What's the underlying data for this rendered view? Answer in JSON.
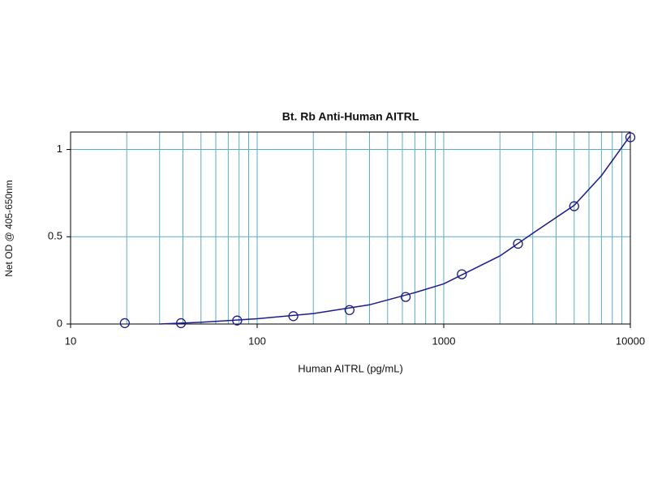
{
  "chart_data": {
    "type": "scatter",
    "title": "Bt. Rb Anti-Human AITRL",
    "x_label": "Human AITRL (pg/mL)",
    "y_label": "Net OD @ 405-650nm",
    "x": [
      19.53,
      39.06,
      78.13,
      156.25,
      312.5,
      625,
      1250,
      2500,
      5000,
      10000
    ],
    "values": [
      0.005,
      0.005,
      0.02,
      0.045,
      0.08,
      0.155,
      0.285,
      0.46,
      0.675,
      1.07
    ],
    "color": "#1c1c8c",
    "fit": {
      "x": [
        30,
        50,
        100,
        200,
        400,
        700,
        1000,
        2000,
        3000,
        5000,
        7000,
        10000
      ],
      "values": [
        0,
        0.01,
        0.03,
        0.06,
        0.11,
        0.18,
        0.23,
        0.39,
        0.52,
        0.68,
        0.85,
        1.08
      ],
      "color": "#1c1c8c"
    },
    "xlog": true,
    "xlim": [
      10,
      10000
    ],
    "xticks": [
      10,
      100,
      1000,
      10000
    ],
    "xminor_grid": [
      20,
      30,
      40,
      50,
      60,
      70,
      80,
      90,
      200,
      300,
      400,
      500,
      600,
      700,
      800,
      900,
      2000,
      3000,
      4000,
      5000,
      6000,
      7000,
      8000,
      9000
    ],
    "ylim": [
      0,
      1.1
    ],
    "yticks": [
      0,
      0.5,
      1
    ],
    "grid": true,
    "grid_color": "#5aaec4"
  }
}
